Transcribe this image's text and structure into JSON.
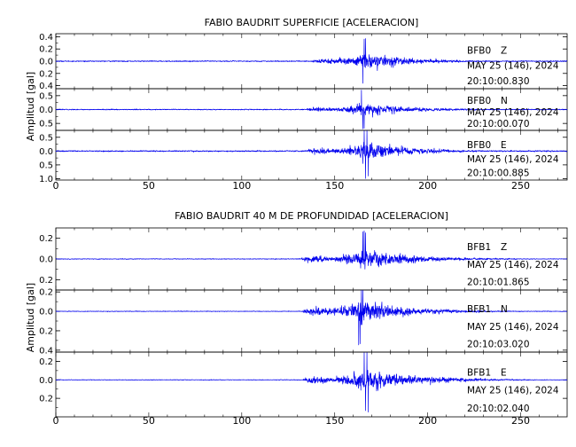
{
  "chart_data": [
    {
      "type": "line",
      "title": "FABIO BAUDRIT SUPERFICIE [ACELERACION]",
      "ylabel": "Amplitud [gal]",
      "xlabel": "",
      "xlim": [
        0,
        275
      ],
      "x_ticks": [
        0,
        50,
        100,
        150,
        200,
        250
      ],
      "x_tick_labels": [
        "0",
        "50",
        "100",
        "150",
        "200",
        "250"
      ],
      "line_color": "#0000ee",
      "grid": false,
      "traces": [
        {
          "station": "BFB0",
          "component": "Z",
          "date": "MAY 25 (146), 2024",
          "time": "20:10:00.830",
          "ylim": [
            -0.45,
            0.45
          ],
          "yticks": [
            0.4,
            0.2,
            0.0,
            -0.2,
            -0.4
          ],
          "ytick_labels": [
            "0.4",
            "0.2",
            "0.0",
            "0.2",
            "0.4"
          ],
          "peak": 0.42,
          "noise": 0.015,
          "onset": 138,
          "peak_time": 166,
          "decay": 25
        },
        {
          "station": "BFB0",
          "component": "N",
          "date": "MAY 25 (146), 2024",
          "time": "20:10:00.070",
          "ylim": [
            -0.75,
            0.75
          ],
          "yticks": [
            0.5,
            0.0,
            -0.5
          ],
          "ytick_labels": [
            "0.5",
            "0.0",
            "0.5"
          ],
          "peak": 0.7,
          "noise": 0.03,
          "onset": 135,
          "peak_time": 165,
          "decay": 28
        },
        {
          "station": "BFB0",
          "component": "E",
          "date": "MAY 25 (146), 2024",
          "time": "20:10:00.885",
          "ylim": [
            -1.05,
            0.75
          ],
          "yticks": [
            0.5,
            0.0,
            -0.5,
            -1.0
          ],
          "ytick_labels": [
            "0.5",
            "0.0",
            "0.5",
            "1.0"
          ],
          "peak": 1.0,
          "noise": 0.04,
          "onset": 135,
          "peak_time": 167,
          "decay": 25
        }
      ]
    },
    {
      "type": "line",
      "title": "FABIO BAUDRIT 40 M DE PROFUNDIDAD [ACELERACION]",
      "ylabel": "Amplitud [gal]",
      "xlabel": "",
      "xlim": [
        0,
        275
      ],
      "x_ticks": [
        0,
        50,
        100,
        150,
        200,
        250
      ],
      "x_tick_labels": [
        "0",
        "50",
        "100",
        "150",
        "200",
        "250"
      ],
      "line_color": "#0000ee",
      "grid": false,
      "traces": [
        {
          "station": "BFB1",
          "component": "Z",
          "date": "MAY 25 (146), 2024",
          "time": "20:10:01.865",
          "ylim": [
            -0.3,
            0.3
          ],
          "yticks": [
            0.2,
            0.0,
            -0.2
          ],
          "ytick_labels": [
            "0.2",
            "0.0",
            "0.2"
          ],
          "peak": 0.28,
          "noise": 0.006,
          "onset": 132,
          "peak_time": 166,
          "decay": 28
        },
        {
          "station": "BFB1",
          "component": "N",
          "date": "MAY 25 (146), 2024",
          "time": "20:10:03.020",
          "ylim": [
            -0.42,
            0.22
          ],
          "yticks": [
            0.2,
            0.0,
            -0.2,
            -0.4
          ],
          "ytick_labels": [
            "0.2",
            "0.0",
            "0.2",
            "0.4"
          ],
          "peak": 0.38,
          "noise": 0.006,
          "onset": 133,
          "peak_time": 164,
          "decay": 25
        },
        {
          "station": "BFB1",
          "component": "E",
          "date": "MAY 25 (146), 2024",
          "time": "20:10:02.040",
          "ylim": [
            -0.4,
            0.3
          ],
          "yticks": [
            0.2,
            0.0,
            -0.2
          ],
          "ytick_labels": [
            "0.2",
            "0.0",
            "0.2"
          ],
          "peak": 0.36,
          "noise": 0.006,
          "onset": 133,
          "peak_time": 167,
          "decay": 28
        }
      ]
    }
  ]
}
